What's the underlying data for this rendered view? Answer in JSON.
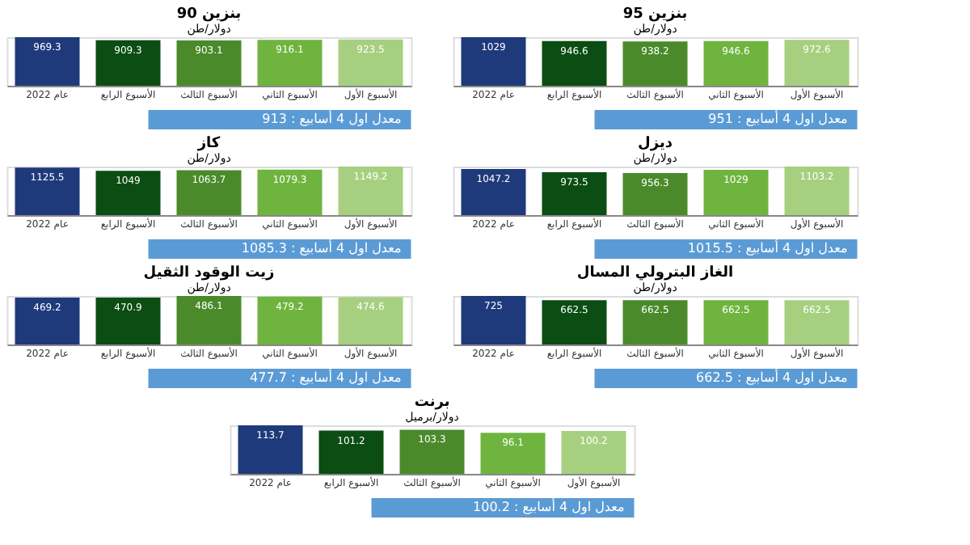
{
  "chart_data": [
    {
      "type": "bar",
      "title": "بنزين 90",
      "subtitle": "دولار/طن",
      "categories": [
        "عام 2022",
        "الأسبوع الرابع",
        "الأسبوع الثالث",
        "الأسبوع الثاني",
        "الأسبوع الأول"
      ],
      "values": [
        969.3,
        909.3,
        903.1,
        916.1,
        923.5
      ],
      "colors": [
        "#1f3a7a",
        "#0b4d12",
        "#4a8a2a",
        "#6fb43f",
        "#a6d07f"
      ],
      "data_labels": true,
      "annotations": [
        "معدل اول 4 أسابيع : 913"
      ]
    },
    {
      "type": "bar",
      "title": "بنزين 95",
      "subtitle": "دولار/طن",
      "categories": [
        "عام 2022",
        "الأسبوع الرابع",
        "الأسبوع الثالث",
        "الأسبوع الثاني",
        "الأسبوع الأول"
      ],
      "values": [
        1029,
        946.6,
        938.2,
        946.6,
        972.6
      ],
      "colors": [
        "#1f3a7a",
        "#0b4d12",
        "#4a8a2a",
        "#6fb43f",
        "#a6d07f"
      ],
      "data_labels": true,
      "annotations": [
        "معدل اول 4 أسابيع : 951"
      ]
    },
    {
      "type": "bar",
      "title": "كاز",
      "subtitle": "دولار/طن",
      "categories": [
        "عام 2022",
        "الأسبوع الرابع",
        "الأسبوع الثالث",
        "الأسبوع الثاني",
        "الأسبوع الأول"
      ],
      "values": [
        1125.5,
        1049,
        1063.7,
        1079.3,
        1149.2
      ],
      "colors": [
        "#1f3a7a",
        "#0b4d12",
        "#4a8a2a",
        "#6fb43f",
        "#a6d07f"
      ],
      "data_labels": true,
      "annotations": [
        "معدل اول 4 أسابيع : 1085.3"
      ]
    },
    {
      "type": "bar",
      "title": "ديزل",
      "subtitle": "دولار/طن",
      "categories": [
        "عام 2022",
        "الأسبوع الرابع",
        "الأسبوع الثالث",
        "الأسبوع الثاني",
        "الأسبوع الأول"
      ],
      "values": [
        1047.2,
        973.5,
        956.3,
        1029,
        1103.2
      ],
      "colors": [
        "#1f3a7a",
        "#0b4d12",
        "#4a8a2a",
        "#6fb43f",
        "#a6d07f"
      ],
      "data_labels": true,
      "annotations": [
        "معدل اول 4 أسابيع : 1015.5"
      ]
    },
    {
      "type": "bar",
      "title": "زيت الوقود الثقيل",
      "subtitle": "دولار/طن",
      "categories": [
        "عام 2022",
        "الأسبوع الرابع",
        "الأسبوع الثالث",
        "الأسبوع الثاني",
        "الأسبوع الأول"
      ],
      "values": [
        469.2,
        470.9,
        486.1,
        479.2,
        474.6
      ],
      "colors": [
        "#1f3a7a",
        "#0b4d12",
        "#4a8a2a",
        "#6fb43f",
        "#a6d07f"
      ],
      "data_labels": true,
      "annotations": [
        "معدل اول 4 أسابيع : 477.7"
      ]
    },
    {
      "type": "bar",
      "title": "الغاز البترولي المسال",
      "subtitle": "دولار/طن",
      "categories": [
        "عام 2022",
        "الأسبوع الرابع",
        "الأسبوع الثالث",
        "الأسبوع الثاني",
        "الأسبوع الأول"
      ],
      "values": [
        725,
        662.5,
        662.5,
        662.5,
        662.5
      ],
      "colors": [
        "#1f3a7a",
        "#0b4d12",
        "#4a8a2a",
        "#6fb43f",
        "#a6d07f"
      ],
      "data_labels": true,
      "annotations": [
        "معدل اول 4 أسابيع : 662.5"
      ]
    },
    {
      "type": "bar",
      "title": "برنت",
      "subtitle": "دولار/برميل",
      "categories": [
        "عام 2022",
        "الأسبوع الرابع",
        "الأسبوع الثالث",
        "الأسبوع الثاني",
        "الأسبوع الأول"
      ],
      "values": [
        113.7,
        101.2,
        103.3,
        96.1,
        100.2
      ],
      "colors": [
        "#1f3a7a",
        "#0b4d12",
        "#4a8a2a",
        "#6fb43f",
        "#a6d07f"
      ],
      "data_labels": true,
      "annotations": [
        "معدل اول 4 أسابيع : 100.2"
      ]
    }
  ]
}
